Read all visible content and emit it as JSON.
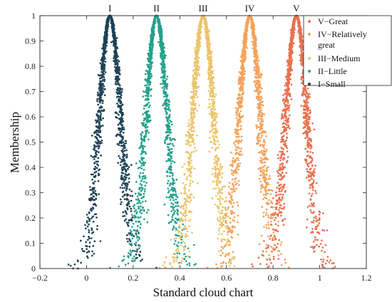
{
  "chart_data": {
    "type": "scatter",
    "title": "",
    "xlabel": "Standard cloud chart",
    "ylabel": "Membership",
    "xlim": [
      -0.2,
      1.2
    ],
    "ylim": [
      0,
      1
    ],
    "xticks": [
      "-0.2",
      "0",
      "0.2",
      "0.4",
      "0.6",
      "0.8",
      "1",
      "1.2"
    ],
    "yticks": [
      "0",
      "0.1",
      "0.2",
      "0.3",
      "0.4",
      "0.5",
      "0.6",
      "0.7",
      "0.8",
      "0.9",
      "1"
    ],
    "grid": false,
    "legend_position": "top-right",
    "peak_labels": [
      "I",
      "II",
      "III",
      "IV",
      "V"
    ],
    "series": [
      {
        "name": "V−Great",
        "Ex": 0.9,
        "En": 0.045,
        "He": 0.008,
        "color": "#E8704F"
      },
      {
        "name": "IV−Relatively great",
        "Ex": 0.7,
        "En": 0.045,
        "He": 0.008,
        "color": "#F3A35B"
      },
      {
        "name": "III−Medium",
        "Ex": 0.5,
        "En": 0.045,
        "He": 0.008,
        "color": "#EBC46C"
      },
      {
        "name": "II−Little",
        "Ex": 0.3,
        "En": 0.045,
        "He": 0.008,
        "color": "#24A08C"
      },
      {
        "name": "I−Small",
        "Ex": 0.1,
        "En": 0.045,
        "He": 0.008,
        "color": "#1E4255"
      }
    ]
  }
}
